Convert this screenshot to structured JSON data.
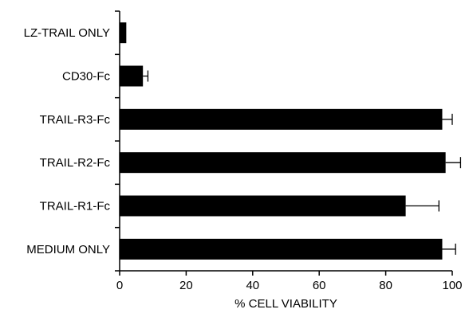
{
  "chart_data": {
    "type": "bar",
    "orientation": "horizontal",
    "categories": [
      "LZ-TRAIL ONLY",
      "CD30-Fc",
      "TRAIL-R3-Fc",
      "TRAIL-R2-Fc",
      "TRAIL-R1-Fc",
      "MEDIUM ONLY"
    ],
    "values": [
      2,
      7,
      97,
      98,
      86,
      97
    ],
    "errors": [
      0,
      1.5,
      3,
      4.5,
      10,
      4
    ],
    "xlabel": "% CELL VIABILITY",
    "ylabel": "",
    "title": "",
    "xlim": [
      0,
      100
    ],
    "xticks": [
      0,
      20,
      40,
      60,
      80,
      100
    ],
    "grid": false,
    "bar_color": "#000000"
  }
}
